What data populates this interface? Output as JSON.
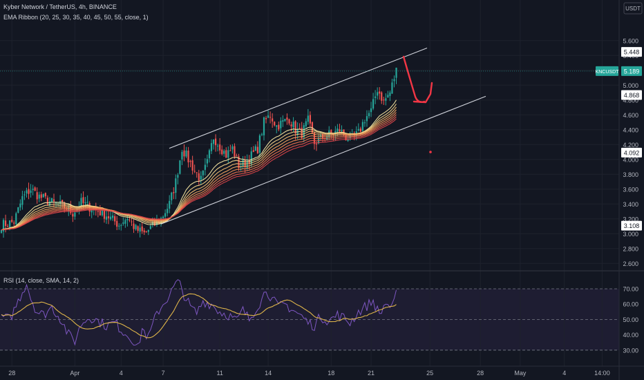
{
  "header": {
    "symbol_line": "Kyber Network / TetherUS, 4h, BINANCE",
    "indicator_line": "EMA Ribbon (20, 25, 30, 35, 40, 45, 50, 55, close, 1)",
    "rsi_line": "RSI (14, close, SMA, 14, 2)",
    "currency": "USDT"
  },
  "price_badges": {
    "ticker_label": "KNCUSDT",
    "last_price": "5.189",
    "channel_top_price": "5.448",
    "channel_bottom_price": "4.868",
    "prior_level": "4.092",
    "low_level": "3.108"
  },
  "colors": {
    "background": "#131722",
    "up": "#26a69a",
    "down": "#ef5350",
    "rsi_line": "#7e57c2",
    "rsi_ma": "#e0b64a",
    "annotation": "#f23645",
    "channel": "#d1d4dc"
  },
  "chart_data": [
    {
      "type": "candlestick",
      "symbol": "KNCUSDT",
      "interval": "4h",
      "ylim": [
        2.5,
        5.75
      ],
      "y_ticks": [
        "5.600",
        "5.400",
        "5.200",
        "5.000",
        "4.800",
        "4.600",
        "4.400",
        "4.200",
        "4.000",
        "3.800",
        "3.600",
        "3.400",
        "3.200",
        "3.000",
        "2.800",
        "2.600"
      ],
      "x_ticks": [
        "28",
        "Apr",
        "4",
        "7",
        "11",
        "14",
        "18",
        "21",
        "25",
        "28",
        "May",
        "4",
        "14:00"
      ],
      "close_anchors": [
        [
          0,
          3.12
        ],
        [
          6,
          3.16
        ],
        [
          10,
          3.48
        ],
        [
          14,
          3.6
        ],
        [
          18,
          3.5
        ],
        [
          24,
          3.42
        ],
        [
          30,
          3.36
        ],
        [
          34,
          3.28
        ],
        [
          38,
          3.42
        ],
        [
          44,
          3.33
        ],
        [
          50,
          3.25
        ],
        [
          56,
          3.12
        ],
        [
          60,
          3.22
        ],
        [
          64,
          3.06
        ],
        [
          68,
          3.0
        ],
        [
          72,
          3.1
        ],
        [
          76,
          3.2
        ],
        [
          80,
          3.4
        ],
        [
          83,
          3.7
        ],
        [
          86,
          4.15
        ],
        [
          89,
          4.0
        ],
        [
          92,
          3.85
        ],
        [
          95,
          3.72
        ],
        [
          98,
          3.95
        ],
        [
          101,
          4.3
        ],
        [
          104,
          4.18
        ],
        [
          107,
          4.06
        ],
        [
          110,
          4.15
        ],
        [
          113,
          3.92
        ],
        [
          116,
          3.95
        ],
        [
          119,
          4.05
        ],
        [
          122,
          4.15
        ],
        [
          125,
          4.5
        ],
        [
          128,
          4.6
        ],
        [
          131,
          4.45
        ],
        [
          134,
          4.5
        ],
        [
          137,
          4.55
        ],
        [
          140,
          4.4
        ],
        [
          143,
          4.35
        ],
        [
          146,
          4.52
        ],
        [
          149,
          4.22
        ],
        [
          152,
          4.28
        ],
        [
          155,
          4.33
        ],
        [
          158,
          4.35
        ],
        [
          161,
          4.4
        ],
        [
          164,
          4.3
        ],
        [
          167,
          4.28
        ],
        [
          170,
          4.35
        ],
        [
          173,
          4.55
        ],
        [
          176,
          4.65
        ],
        [
          179,
          4.95
        ],
        [
          182,
          4.78
        ],
        [
          185,
          4.9
        ],
        [
          188,
          5.2
        ]
      ],
      "ema_ribbon_periods": [
        20,
        25,
        30,
        35,
        40,
        45,
        50,
        55
      ],
      "channel": {
        "upper_start_price": 4.15,
        "upper_end_price": 5.5,
        "lower_start_price": 3.13,
        "lower_end_price": 4.85
      },
      "annotation": "red curved arrow pointing down toward lower channel line"
    },
    {
      "type": "line",
      "title": "RSI (14, close, SMA, 14, 2)",
      "ylim": [
        28,
        72
      ],
      "y_ticks": [
        "70.00",
        "60.00",
        "50.00",
        "40.00",
        "30.00"
      ],
      "bands": [
        30,
        50,
        70
      ],
      "rsi_anchors": [
        [
          0,
          52
        ],
        [
          4,
          50
        ],
        [
          8,
          62
        ],
        [
          10,
          68
        ],
        [
          12,
          74
        ],
        [
          14,
          64
        ],
        [
          17,
          55
        ],
        [
          20,
          53
        ],
        [
          24,
          58
        ],
        [
          28,
          51
        ],
        [
          32,
          40
        ],
        [
          35,
          36
        ],
        [
          38,
          47
        ],
        [
          42,
          52
        ],
        [
          46,
          49
        ],
        [
          50,
          46
        ],
        [
          54,
          48
        ],
        [
          58,
          42
        ],
        [
          62,
          38
        ],
        [
          65,
          31
        ],
        [
          67,
          44
        ],
        [
          70,
          38
        ],
        [
          74,
          54
        ],
        [
          78,
          62
        ],
        [
          81,
          68
        ],
        [
          84,
          76
        ],
        [
          87,
          66
        ],
        [
          90,
          58
        ],
        [
          93,
          54
        ],
        [
          96,
          62
        ],
        [
          100,
          60
        ],
        [
          104,
          55
        ],
        [
          108,
          53
        ],
        [
          112,
          49
        ],
        [
          115,
          56
        ],
        [
          118,
          50
        ],
        [
          121,
          57
        ],
        [
          124,
          63
        ],
        [
          126,
          70
        ],
        [
          129,
          63
        ],
        [
          132,
          58
        ],
        [
          135,
          60
        ],
        [
          139,
          56
        ],
        [
          143,
          52
        ],
        [
          146,
          48
        ],
        [
          149,
          46
        ],
        [
          152,
          52
        ],
        [
          156,
          49
        ],
        [
          160,
          53
        ],
        [
          163,
          51
        ],
        [
          166,
          48
        ],
        [
          170,
          55
        ],
        [
          174,
          59
        ],
        [
          177,
          62
        ],
        [
          180,
          53
        ],
        [
          183,
          61
        ],
        [
          186,
          57
        ],
        [
          188,
          66
        ]
      ]
    }
  ]
}
